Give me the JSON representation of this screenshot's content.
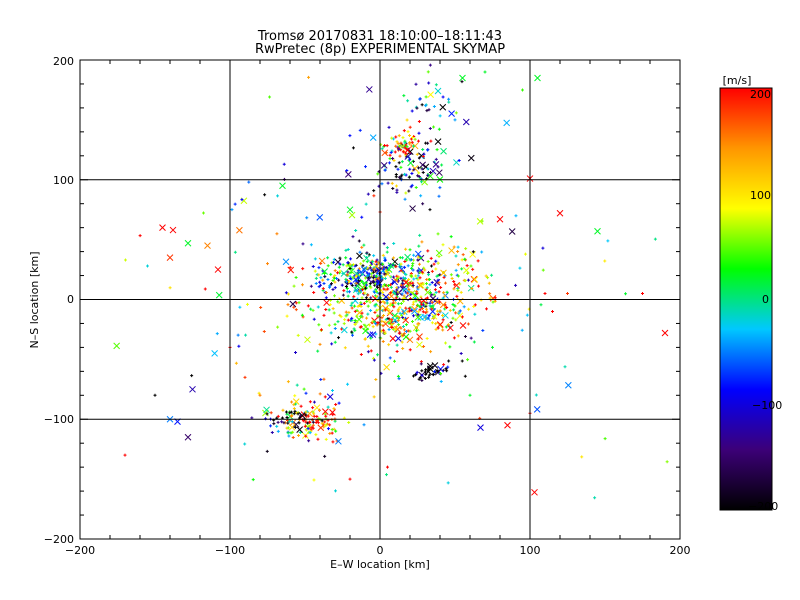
{
  "chart_data": {
    "type": "scatter",
    "title": "Tromsø 20170831 18:10:00–18:11:43",
    "subtitle": "RwPretec (8p) EXPERIMENTAL SKYMAP",
    "xlabel": "E–W location [km]",
    "ylabel": "N–S location [km]",
    "xlim": [
      -200,
      200
    ],
    "ylim": [
      -200,
      200
    ],
    "xticks": [
      "−200",
      "−100",
      "0",
      "100",
      "200"
    ],
    "yticks": [
      "−200",
      "−100",
      "0",
      "100",
      "200"
    ],
    "grid": true,
    "colorbar": {
      "unit": "[m/s]",
      "min": -200,
      "max": 200,
      "ticks": [
        "−200",
        "−100",
        "0",
        "100",
        "200"
      ],
      "colors": [
        "#000000",
        "#3c0078",
        "#0000ff",
        "#00c8ff",
        "#00ff00",
        "#ffff00",
        "#ff9600",
        "#ff0000"
      ]
    },
    "clusters": [
      {
        "cx": 0,
        "cy": 20,
        "sx": 18,
        "sy": 10,
        "n": 260,
        "vbias": -60
      },
      {
        "cx": 5,
        "cy": -10,
        "sx": 28,
        "sy": 16,
        "n": 420,
        "vbias": 80
      },
      {
        "cx": 20,
        "cy": 110,
        "sx": 12,
        "sy": 14,
        "n": 110,
        "vbias": -100
      },
      {
        "cx": 15,
        "cy": 130,
        "sx": 10,
        "sy": 6,
        "n": 50,
        "vbias": 150
      },
      {
        "cx": 25,
        "cy": 160,
        "sx": 15,
        "sy": 20,
        "n": 40,
        "vbias": -80
      },
      {
        "cx": -45,
        "cy": -100,
        "sx": 12,
        "sy": 10,
        "n": 120,
        "vbias": 120
      },
      {
        "cx": -60,
        "cy": -100,
        "sx": 10,
        "sy": 6,
        "n": 40,
        "vbias": -200
      },
      {
        "cx": 35,
        "cy": -60,
        "sx": 8,
        "sy": 5,
        "n": 40,
        "vbias": -200
      },
      {
        "cx": -20,
        "cy": 20,
        "sx": 15,
        "sy": 8,
        "n": 90,
        "vbias": 0
      },
      {
        "cx": 40,
        "cy": 10,
        "sx": 18,
        "sy": 18,
        "n": 140,
        "vbias": 120
      },
      {
        "cx": 0,
        "cy": 0,
        "sx": 80,
        "sy": 80,
        "n": 160,
        "vbias": 0
      }
    ],
    "scattered_points": [
      {
        "x": -145,
        "y": 60,
        "v": 200,
        "m": "x"
      },
      {
        "x": -138,
        "y": 58,
        "v": 200,
        "m": "x"
      },
      {
        "x": -140,
        "y": 35,
        "v": 180,
        "m": "x"
      },
      {
        "x": -128,
        "y": 47,
        "v": 20,
        "m": "x"
      },
      {
        "x": -115,
        "y": 45,
        "v": 150,
        "m": "x"
      },
      {
        "x": -108,
        "y": 25,
        "v": 200,
        "m": "x"
      },
      {
        "x": -135,
        "y": -102,
        "v": -80,
        "m": "x"
      },
      {
        "x": -125,
        "y": -75,
        "v": -120,
        "m": "x"
      },
      {
        "x": -128,
        "y": -115,
        "v": -150,
        "m": "x"
      },
      {
        "x": -140,
        "y": -100,
        "v": -50,
        "m": "x"
      },
      {
        "x": -65,
        "y": 95,
        "v": 20,
        "m": "x"
      },
      {
        "x": -20,
        "y": 75,
        "v": 20,
        "m": "x"
      },
      {
        "x": 100,
        "y": 101,
        "v": 200,
        "m": "x"
      },
      {
        "x": 120,
        "y": 72,
        "v": 200,
        "m": "x"
      },
      {
        "x": 145,
        "y": 57,
        "v": 20,
        "m": "x"
      },
      {
        "x": 80,
        "y": 67,
        "v": 200,
        "m": "x"
      },
      {
        "x": 190,
        "y": -28,
        "v": 200,
        "m": "x"
      },
      {
        "x": 103,
        "y": -161,
        "v": 200,
        "m": "x"
      },
      {
        "x": 85,
        "y": -105,
        "v": 200,
        "m": "x"
      },
      {
        "x": 67,
        "y": -107,
        "v": -100,
        "m": "x"
      },
      {
        "x": 55,
        "y": 185,
        "v": 20,
        "m": "x"
      },
      {
        "x": 105,
        "y": 185,
        "v": 20,
        "m": "x"
      },
      {
        "x": -170,
        "y": -130,
        "v": 200,
        "m": "+"
      },
      {
        "x": -155,
        "y": 28,
        "v": -20,
        "m": "+"
      },
      {
        "x": -150,
        "y": -80,
        "v": -200,
        "m": "+"
      },
      {
        "x": 110,
        "y": 5,
        "v": 200,
        "m": "+"
      },
      {
        "x": 115,
        "y": -10,
        "v": 200,
        "m": "+"
      },
      {
        "x": 125,
        "y": 5,
        "v": 180,
        "m": "+"
      },
      {
        "x": 175,
        "y": 5,
        "v": 200,
        "m": "+"
      },
      {
        "x": 95,
        "y": 175,
        "v": 40,
        "m": "+"
      },
      {
        "x": 100,
        "y": -95,
        "v": 200,
        "m": "+"
      },
      {
        "x": -80,
        "y": -80,
        "v": 150,
        "m": "+"
      },
      {
        "x": -90,
        "y": -65,
        "v": 180,
        "m": "+"
      },
      {
        "x": -100,
        "y": -40,
        "v": 200,
        "m": "+"
      },
      {
        "x": -75,
        "y": 30,
        "v": 150,
        "m": "+"
      },
      {
        "x": 50,
        "y": 150,
        "v": -40,
        "m": "+"
      },
      {
        "x": 70,
        "y": 190,
        "v": 20,
        "m": "+"
      },
      {
        "x": -20,
        "y": -150,
        "v": 200,
        "m": "+"
      },
      {
        "x": 5,
        "y": -140,
        "v": 200,
        "m": "+"
      },
      {
        "x": 60,
        "y": -80,
        "v": 20,
        "m": "+"
      },
      {
        "x": 75,
        "y": -40,
        "v": 20,
        "m": "+"
      }
    ]
  }
}
